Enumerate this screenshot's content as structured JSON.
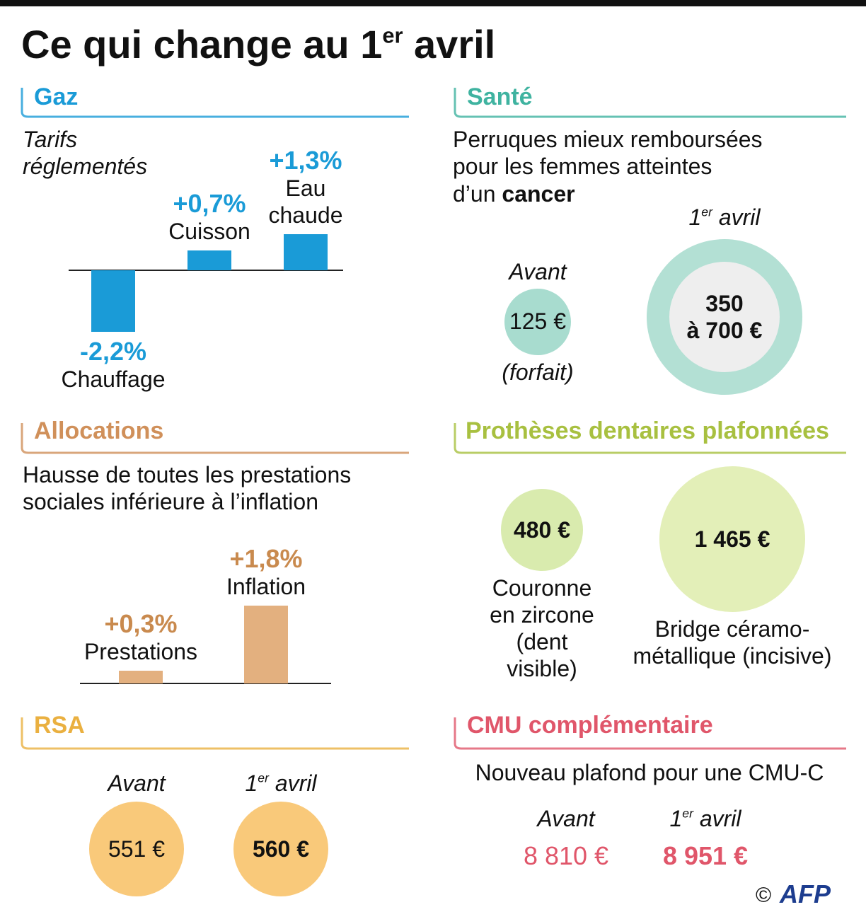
{
  "title": {
    "text": "Ce qui change au 1",
    "sup": "er",
    "end": "avril"
  },
  "gaz": {
    "heading": "Gaz",
    "subtitle": [
      "Tarifs",
      "réglementés"
    ]
  },
  "allocations": {
    "heading": "Allocations",
    "text": [
      "Hausse de toutes les prestations",
      "sociales inférieure à l’inflation"
    ]
  },
  "rsa": {
    "heading": "RSA",
    "before": {
      "label": "Avant",
      "value": "551 €"
    },
    "after": {
      "label": {
        "num": "1",
        "sup": "er",
        "word": "avril"
      },
      "value": "560 €"
    }
  },
  "sante": {
    "heading": "Santé",
    "text": [
      "Perruques mieux remboursées",
      "pour les femmes atteintes"
    ],
    "text_last": "d’un",
    "text_bold": "cancer",
    "before": {
      "label": "Avant",
      "value": "125 €",
      "note": "(forfait)"
    },
    "after": {
      "label": {
        "num": "1",
        "sup": "er",
        "word": "avril"
      },
      "value": [
        "350",
        "à 700 €"
      ]
    }
  },
  "protheses": {
    "heading": "Prothèses dentaires plafonnées",
    "items": [
      {
        "value": "480 €",
        "label": "Couronne en zircone (dent visible)"
      },
      {
        "value": "1 465 €",
        "label": "Bridge céramo-métallique (incisive)"
      }
    ]
  },
  "cmu": {
    "heading": "CMU complémentaire",
    "text": "Nouveau plafond pour une CMU-C",
    "before": {
      "label": "Avant",
      "value": "8 810 €"
    },
    "after": {
      "label": {
        "num": "1",
        "sup": "er",
        "word": "avril"
      },
      "value": "8 951 €"
    }
  },
  "credit": {
    "copyright": "©",
    "brand": "AFP"
  },
  "chart_data": [
    {
      "type": "bar",
      "categories": [
        "Chauffage",
        "Cuisson",
        "Eau chaude"
      ],
      "values": [
        -2.2,
        0.7,
        1.3
      ],
      "value_labels": [
        "-2,2%",
        "+0,7%",
        "+1,3%"
      ],
      "color": "#1a9bd7",
      "label_color": "#1a9bd7"
    },
    {
      "type": "bar",
      "categories": [
        "Prestations",
        "Inflation"
      ],
      "values": [
        0.3,
        1.8
      ],
      "value_labels": [
        "+0,3%",
        "+1,8%"
      ],
      "color": "#e3b07f",
      "label_color": "#c98a4e"
    }
  ]
}
